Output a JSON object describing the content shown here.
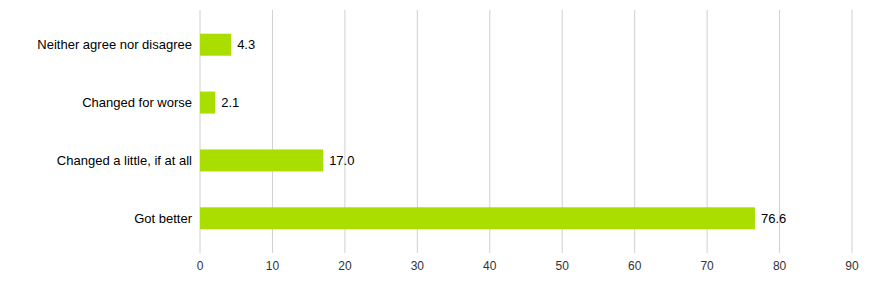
{
  "chart_data": {
    "type": "bar",
    "orientation": "horizontal",
    "categories": [
      "Got better",
      "Changed a little, if at all",
      "Changed for worse",
      "Neither agree nor disagree"
    ],
    "values": [
      76.6,
      17.0,
      2.1,
      4.3
    ],
    "value_labels": [
      "76.6",
      "17.0",
      "2.1",
      "4.3"
    ],
    "color": "#AADD00",
    "xlim": [
      0,
      90
    ],
    "xticks": [
      0,
      10,
      20,
      30,
      40,
      50,
      60,
      70,
      80,
      90
    ],
    "grid": true,
    "data_labels": true
  }
}
